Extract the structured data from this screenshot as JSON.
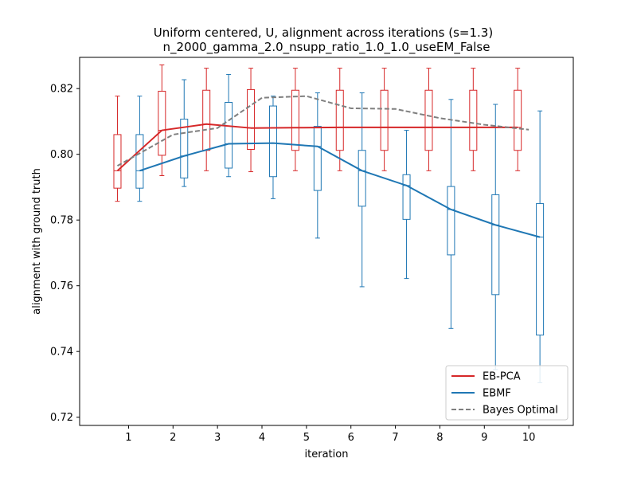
{
  "chart_data": {
    "type": "line",
    "title": "Uniform centered, U, alignment across iterations (s=1.3)",
    "subtitle": "n_2000_gamma_2.0_nsupp_ratio_1.0_1.0_useEM_False",
    "xlabel": "iteration",
    "ylabel": "alignment with ground truth",
    "xlim": [
      -0.1,
      11.0
    ],
    "ylim": [
      0.7175,
      0.8295
    ],
    "x_ticks": [
      "1",
      "2",
      "3",
      "4",
      "5",
      "6",
      "7",
      "8",
      "9",
      "10"
    ],
    "y_ticks": [
      "0.72",
      "0.74",
      "0.76",
      "0.78",
      "0.80",
      "0.82"
    ],
    "grid": false,
    "legend_position": "lower-right",
    "series": [
      {
        "name": "EB-PCA",
        "color": "#d62728",
        "style": "solid",
        "x": [
          0.75,
          1.75,
          2.75,
          3.75,
          4.75,
          5.75,
          6.75,
          7.75,
          8.75,
          9.75
        ],
        "values": [
          0.795,
          0.8073,
          0.8092,
          0.808,
          0.8081,
          0.8082,
          0.8082,
          0.8082,
          0.8082,
          0.8082
        ]
      },
      {
        "name": "EBMF",
        "color": "#1f77b4",
        "style": "solid",
        "x": [
          1.25,
          2.25,
          3.25,
          4.25,
          5.25,
          6.25,
          7.25,
          8.25,
          9.25,
          10.25
        ],
        "values": [
          0.795,
          0.7995,
          0.8032,
          0.8034,
          0.8024,
          0.795,
          0.7905,
          0.7832,
          0.7785,
          0.7748
        ]
      },
      {
        "name": "Bayes Optimal",
        "color": "#7f7f7f",
        "style": "dashed",
        "x": [
          0.75,
          2.0,
          3.0,
          4.0,
          5.0,
          6.0,
          7.0,
          8.0,
          9.0,
          10.0
        ],
        "values": [
          0.7965,
          0.806,
          0.808,
          0.8172,
          0.8177,
          0.814,
          0.8138,
          0.811,
          0.809,
          0.8075
        ]
      }
    ],
    "boxplots": [
      {
        "series": "EB-PCA",
        "color": "#d62728",
        "positions": [
          0.75,
          1.75,
          2.75,
          3.75,
          4.75,
          5.75,
          6.75,
          7.75,
          8.75,
          9.75
        ],
        "boxes": [
          {
            "whislo": 0.7857,
            "q1": 0.7897,
            "med": 0.795,
            "q3": 0.806,
            "whishi": 0.8177
          },
          {
            "whislo": 0.7935,
            "q1": 0.7997,
            "med": 0.8073,
            "q3": 0.8192,
            "whishi": 0.8272
          },
          {
            "whislo": 0.795,
            "q1": 0.8012,
            "med": 0.8092,
            "q3": 0.8195,
            "whishi": 0.8262
          },
          {
            "whislo": 0.7947,
            "q1": 0.8015,
            "med": 0.808,
            "q3": 0.8197,
            "whishi": 0.8262
          },
          {
            "whislo": 0.795,
            "q1": 0.8012,
            "med": 0.8081,
            "q3": 0.8195,
            "whishi": 0.8262
          },
          {
            "whislo": 0.795,
            "q1": 0.8012,
            "med": 0.8082,
            "q3": 0.8195,
            "whishi": 0.8262
          },
          {
            "whislo": 0.795,
            "q1": 0.8012,
            "med": 0.8082,
            "q3": 0.8195,
            "whishi": 0.8262
          },
          {
            "whislo": 0.795,
            "q1": 0.8012,
            "med": 0.8082,
            "q3": 0.8195,
            "whishi": 0.8262
          },
          {
            "whislo": 0.795,
            "q1": 0.8012,
            "med": 0.8082,
            "q3": 0.8195,
            "whishi": 0.8262
          },
          {
            "whislo": 0.795,
            "q1": 0.8012,
            "med": 0.8082,
            "q3": 0.8195,
            "whishi": 0.8262
          }
        ]
      },
      {
        "series": "EBMF",
        "color": "#1f77b4",
        "positions": [
          1.25,
          2.25,
          3.25,
          4.25,
          5.25,
          6.25,
          7.25,
          8.25,
          9.25,
          10.25
        ],
        "boxes": [
          {
            "whislo": 0.7857,
            "q1": 0.7897,
            "med": 0.795,
            "q3": 0.806,
            "whishi": 0.8177
          },
          {
            "whislo": 0.7902,
            "q1": 0.7928,
            "med": 0.7995,
            "q3": 0.8107,
            "whishi": 0.8227
          },
          {
            "whislo": 0.7932,
            "q1": 0.7958,
            "med": 0.8032,
            "q3": 0.8158,
            "whishi": 0.8243
          },
          {
            "whislo": 0.7865,
            "q1": 0.7932,
            "med": 0.8034,
            "q3": 0.8147,
            "whishi": 0.8177
          },
          {
            "whislo": 0.7745,
            "q1": 0.789,
            "med": 0.8024,
            "q3": 0.8085,
            "whishi": 0.8187
          },
          {
            "whislo": 0.7597,
            "q1": 0.7842,
            "med": 0.795,
            "q3": 0.8012,
            "whishi": 0.8187
          },
          {
            "whislo": 0.7622,
            "q1": 0.7802,
            "med": 0.7905,
            "q3": 0.7938,
            "whishi": 0.8073
          },
          {
            "whislo": 0.747,
            "q1": 0.7694,
            "med": 0.7832,
            "q3": 0.7902,
            "whishi": 0.8167
          },
          {
            "whislo": 0.7345,
            "q1": 0.7573,
            "med": 0.7785,
            "q3": 0.7877,
            "whishi": 0.8152
          },
          {
            "whislo": 0.7305,
            "q1": 0.745,
            "med": 0.7748,
            "q3": 0.785,
            "whishi": 0.8132
          }
        ]
      }
    ]
  }
}
